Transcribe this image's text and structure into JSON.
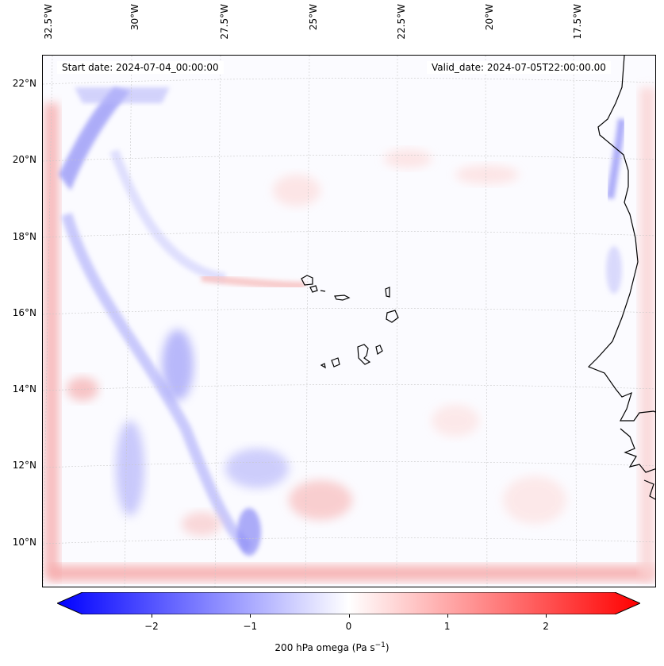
{
  "map": {
    "start_date": "Start date: 2024-07-04_00:00:00",
    "valid_date": "Valid_date: 2024-07-05T22:00:00.00",
    "field": "200 hPa omega",
    "longitude_labels": [
      "32.5°W",
      "30°W",
      "27.5°W",
      "25°W",
      "22.5°W",
      "20°W",
      "17.5°W"
    ],
    "latitude_labels": [
      "22°N",
      "20°N",
      "18°N",
      "16°N",
      "14°N",
      "12°N",
      "10°N"
    ],
    "colors": {
      "negative": "#0000ff",
      "zero": "#ffffff",
      "positive": "#ff0000",
      "coast": "#000000"
    }
  },
  "colorbar": {
    "ticks": [
      "−2",
      "−1",
      "0",
      "1",
      "2"
    ],
    "tick_values": [
      -2,
      -1,
      0,
      1,
      2
    ],
    "range": [
      -2.7,
      2.7
    ],
    "label_prefix": "200 hPa omega (Pa s",
    "label_exp": "−1",
    "label_suffix": ")"
  }
}
